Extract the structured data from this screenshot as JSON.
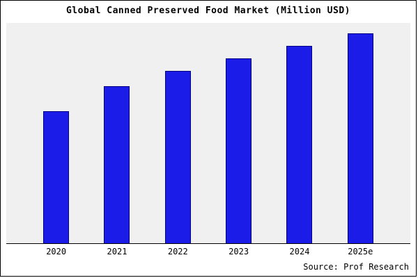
{
  "title": "Global Canned Preserved Food Market (Million USD)",
  "source": "Source: Prof Research",
  "colors": {
    "bar_fill": "#1c1ce8",
    "bar_border": "#000080",
    "plot_bg": "#f0f0f0",
    "axis": "#000000"
  },
  "chart_data": {
    "type": "bar",
    "title": "Global Canned Preserved Food Market (Million USD)",
    "categories": [
      "2020",
      "2021",
      "2022",
      "2023",
      "2024",
      "2025e"
    ],
    "values": [
      63,
      75,
      82,
      88,
      94,
      100
    ],
    "xlabel": "",
    "ylabel": "",
    "ylim": [
      0,
      105
    ],
    "grid": false,
    "legend": false,
    "value_note": "relative scale; no y-axis tick labels shown in source image"
  }
}
